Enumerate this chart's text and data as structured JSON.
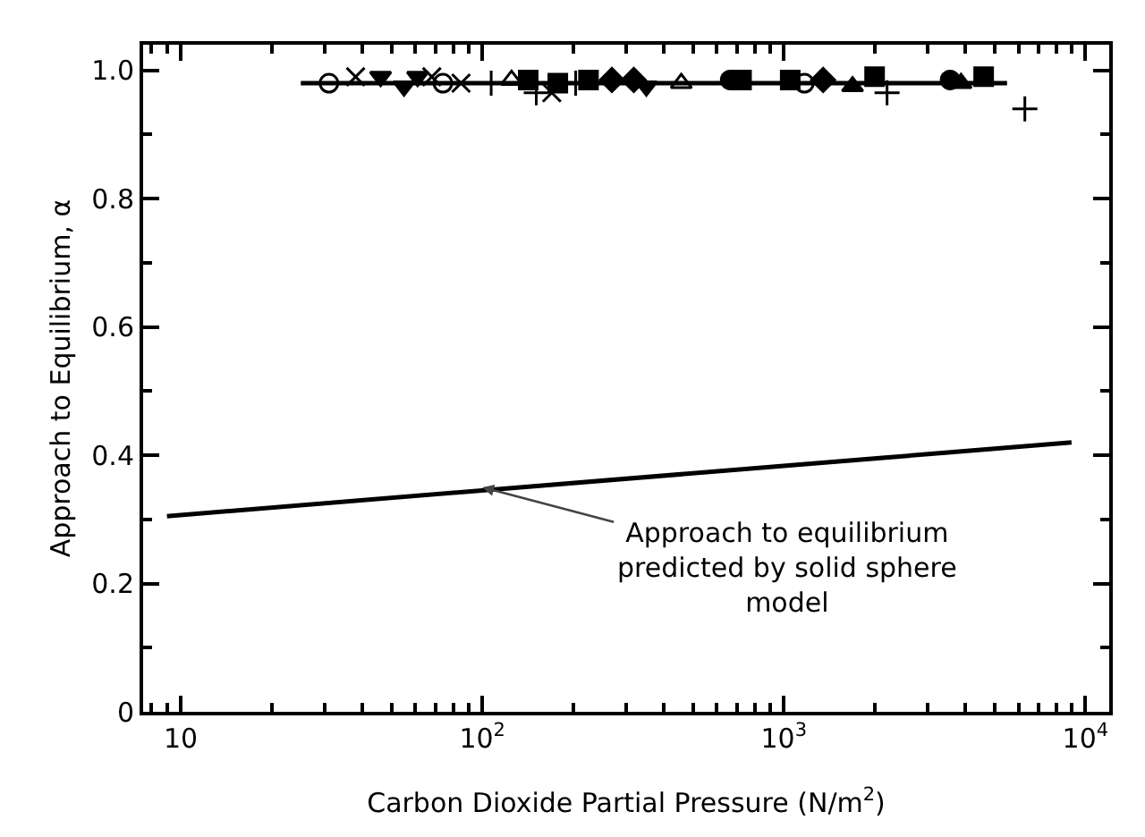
{
  "chart_data": {
    "type": "scatter",
    "xlabel": "Carbon Dioxide Partial Pressure (N/m$^{2}$)",
    "ylabel": "Approach to Equilibrium, α",
    "log": "x",
    "xlim": [
      7.5,
      12000
    ],
    "ylim": [
      0,
      1.04
    ],
    "xticks": [
      10,
      {
        "value": 100,
        "label": "10$^{2}$"
      },
      {
        "value": 1000,
        "label": "10$^{3}$"
      },
      {
        "value": 10000,
        "label": "10$^{4}$"
      }
    ],
    "yticks": [
      0,
      0.2,
      0.4,
      0.6,
      0.8,
      {
        "value": 1,
        "label": "1.0"
      }
    ],
    "grid": false,
    "series": [
      {
        "type": "line",
        "color": "#000000",
        "marker": "none",
        "line_style": "solid",
        "x": [
          25,
          5500
        ],
        "values": [
          0.98,
          0.98
        ]
      },
      {
        "type": "line",
        "color": "#000000",
        "marker": "none",
        "line_style": "solid",
        "x": [
          9,
          9000
        ],
        "values": [
          0.305,
          0.42
        ]
      },
      {
        "color": "#000000",
        "marker": "circle-open",
        "x": [
          31,
          74,
          1170
        ],
        "values": [
          0.98,
          0.98,
          0.98
        ]
      },
      {
        "color": "#000000",
        "marker": "x",
        "x": [
          38,
          68,
          85,
          170
        ],
        "values": [
          0.99,
          0.99,
          0.98,
          0.965
        ]
      },
      {
        "color": "#000000",
        "marker": "triangle-down",
        "x": [
          46,
          55,
          61,
          350
        ],
        "values": [
          0.99,
          0.975,
          0.99,
          0.975
        ]
      },
      {
        "color": "#000000",
        "marker": "cross",
        "x": [
          107,
          151,
          204,
          2200,
          6300
        ],
        "values": [
          0.98,
          0.965,
          0.98,
          0.965,
          0.94
        ]
      },
      {
        "color": "#000000",
        "marker": "triangle-open",
        "x": [
          125,
          457
        ],
        "values": [
          0.985,
          0.98
        ]
      },
      {
        "color": "#000000",
        "marker": "square",
        "x": [
          142,
          178,
          225,
          724,
          1050,
          2000,
          4600
        ],
        "values": [
          0.985,
          0.98,
          0.985,
          0.985,
          0.985,
          0.99,
          0.99
        ]
      },
      {
        "color": "#000000",
        "marker": "diamond",
        "x": [
          269,
          318,
          1350
        ],
        "values": [
          0.985,
          0.985,
          0.985
        ]
      },
      {
        "color": "#000000",
        "marker": "circle",
        "x": [
          664,
          3560
        ],
        "values": [
          0.985,
          0.985
        ]
      },
      {
        "color": "#000000",
        "marker": "triangle",
        "x": [
          1690,
          3870
        ],
        "values": [
          0.975,
          0.98
        ]
      }
    ],
    "annotations": [
      {
        "text": "Approach to equilibrium\npredicted by solid sphere\nmodel",
        "x": 100,
        "y": 0.35
      }
    ]
  }
}
